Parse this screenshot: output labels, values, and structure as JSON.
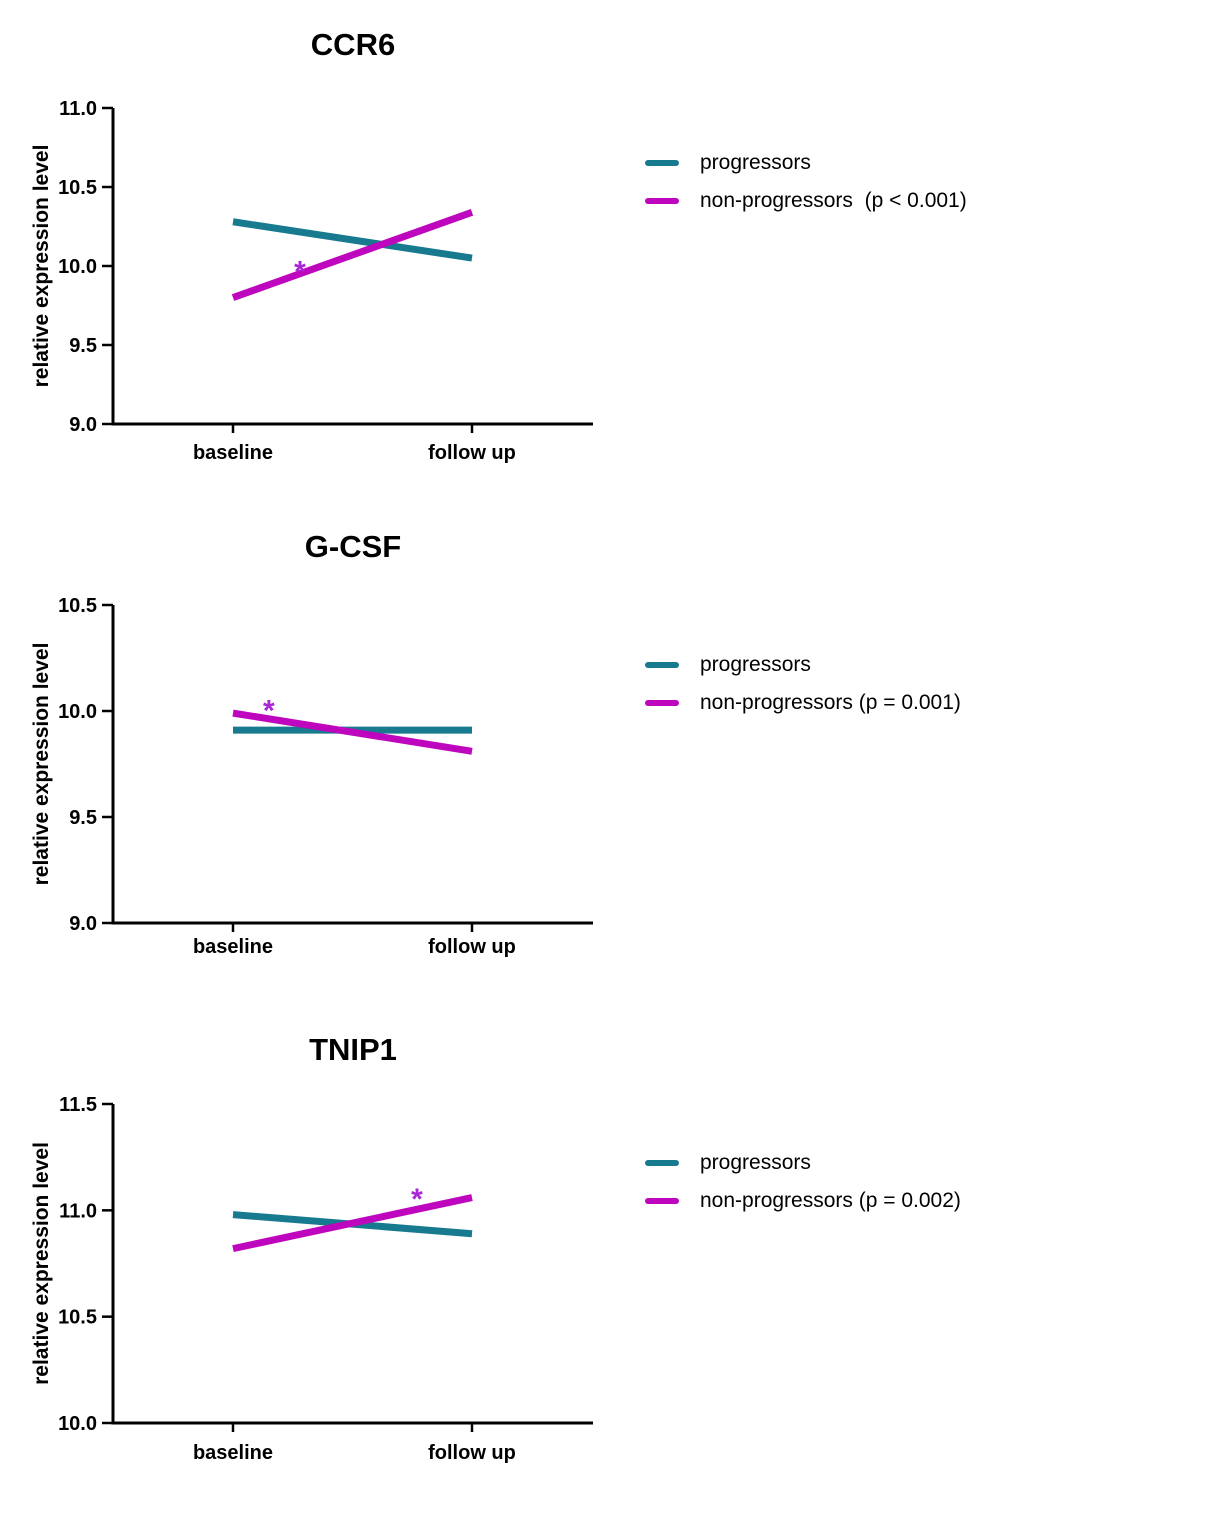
{
  "figure": {
    "background": "#ffffff",
    "text_color": "#000000"
  },
  "colors": {
    "progressors": "#177a8e",
    "non_progressors": "#be06be",
    "asterisk": "#a826d6",
    "axis": "#000000"
  },
  "chart_data": [
    {
      "type": "line",
      "title": "CCR6",
      "ylabel": "relative expression level",
      "xlabel": "",
      "categories": [
        "baseline",
        "follow up"
      ],
      "ylim": [
        9.0,
        11.0
      ],
      "yticks": [
        "9.0",
        "9.5",
        "10.0",
        "10.5",
        "11.0"
      ],
      "grid": false,
      "legend_position": "right",
      "series": [
        {
          "name": "progressors",
          "color": "#177a8e",
          "values": [
            10.28,
            10.05
          ]
        },
        {
          "name": "non-progressors",
          "color": "#be06be",
          "values": [
            9.8,
            10.34
          ]
        }
      ],
      "legend": [
        "progressors",
        "non-progressors  (p < 0.001)"
      ],
      "annotation": {
        "text": "*",
        "color": "#a826d6",
        "x_between": 0.28,
        "y": 10.03
      }
    },
    {
      "type": "line",
      "title": "G-CSF",
      "ylabel": "relative expression level",
      "xlabel": "",
      "categories": [
        "baseline",
        "follow up"
      ],
      "ylim": [
        9.0,
        10.5
      ],
      "yticks": [
        "9.0",
        "9.5",
        "10.0",
        "10.5"
      ],
      "grid": false,
      "legend_position": "right",
      "series": [
        {
          "name": "progressors",
          "color": "#177a8e",
          "values": [
            9.91,
            9.91
          ]
        },
        {
          "name": "non-progressors",
          "color": "#be06be",
          "values": [
            9.99,
            9.81
          ]
        }
      ],
      "legend": [
        "progressors",
        "non-progressors (p = 0.001)"
      ],
      "annotation": {
        "text": "*",
        "color": "#a826d6",
        "x_between": 0.15,
        "y": 10.05
      }
    },
    {
      "type": "line",
      "title": "TNIP1",
      "ylabel": "relative expression level",
      "xlabel": "",
      "categories": [
        "baseline",
        "follow up"
      ],
      "ylim": [
        10.0,
        11.5
      ],
      "yticks": [
        "10.0",
        "10.5",
        "11.0",
        "11.5"
      ],
      "grid": false,
      "legend_position": "right",
      "series": [
        {
          "name": "progressors",
          "color": "#177a8e",
          "values": [
            10.98,
            10.89
          ]
        },
        {
          "name": "non-progressors",
          "color": "#be06be",
          "values": [
            10.82,
            11.06
          ]
        }
      ],
      "legend": [
        "progressors",
        "non-progressors (p = 0.002)"
      ],
      "annotation": {
        "text": "*",
        "color": "#a826d6",
        "x_between": 0.77,
        "y": 11.1
      }
    }
  ]
}
